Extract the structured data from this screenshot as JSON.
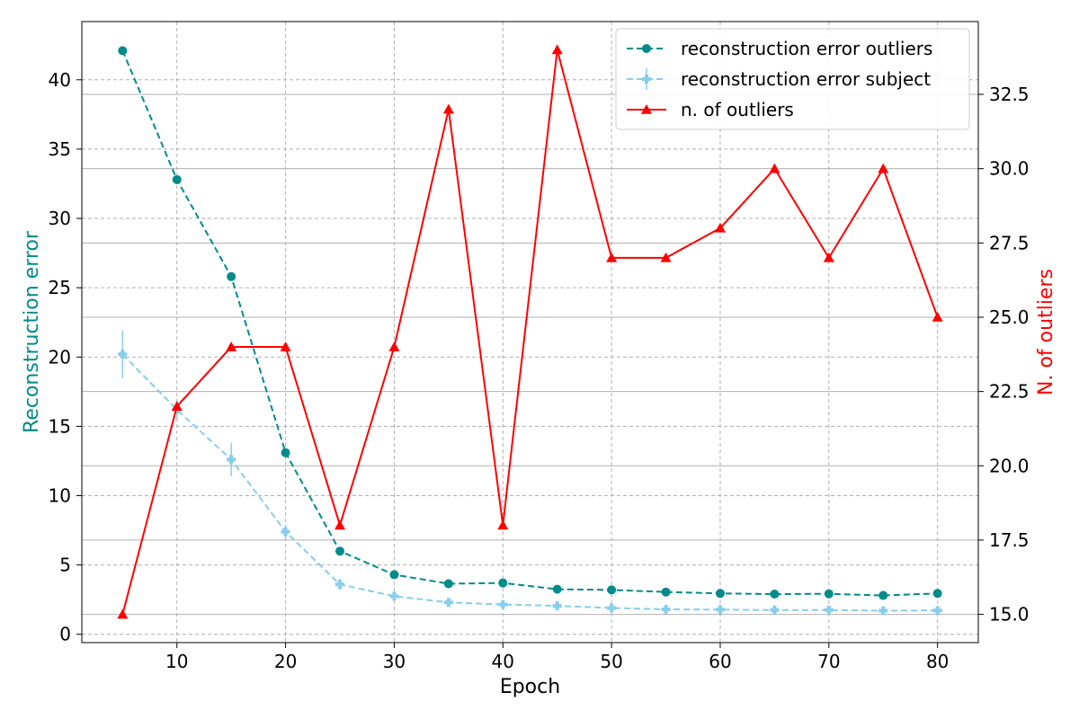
{
  "chart_data": {
    "type": "line",
    "x": [
      5,
      10,
      15,
      20,
      25,
      30,
      35,
      40,
      45,
      50,
      55,
      60,
      65,
      70,
      75,
      80
    ],
    "xlabel": "Epoch",
    "xticks": [
      10,
      20,
      30,
      40,
      50,
      60,
      70,
      80
    ],
    "xlim": [
      1.25,
      83.75
    ],
    "y_left": {
      "label": "Reconstruction error",
      "color": "#008b8b",
      "lim": [
        -0.6,
        44.2
      ],
      "ticks": [
        0,
        5,
        10,
        15,
        20,
        25,
        30,
        35,
        40
      ],
      "tick_labels": [
        "0",
        "5",
        "10",
        "15",
        "20",
        "25",
        "30",
        "35",
        "40"
      ]
    },
    "y_right": {
      "label": "N. of outliers",
      "color": "#ff0000",
      "lim": [
        14.05,
        34.95
      ],
      "ticks": [
        15.0,
        17.5,
        20.0,
        22.5,
        25.0,
        27.5,
        30.0,
        32.5
      ],
      "tick_labels": [
        "15.0",
        "17.5",
        "20.0",
        "22.5",
        "25.0",
        "27.5",
        "30.0",
        "32.5"
      ]
    },
    "series": [
      {
        "name": "reconstruction error outliers",
        "axis": "left",
        "color": "#008b8b",
        "style": "dashed",
        "marker": "circle",
        "values": [
          42.1,
          32.8,
          25.8,
          13.1,
          6.0,
          4.3,
          3.65,
          3.7,
          3.25,
          3.2,
          3.05,
          2.95,
          2.9,
          2.92,
          2.8,
          2.95
        ]
      },
      {
        "name": "reconstruction error subject",
        "axis": "left",
        "color": "#87ceeb",
        "style": "dashed",
        "marker": "plus-filled",
        "values": [
          20.2,
          16.2,
          12.6,
          7.4,
          3.6,
          2.75,
          2.3,
          2.15,
          2.05,
          1.9,
          1.8,
          1.78,
          1.75,
          1.75,
          1.7,
          1.72
        ],
        "errors": [
          1.7,
          0.7,
          1.2,
          0.5,
          0.4,
          0.3,
          0.2,
          0.15,
          0.15,
          0.15,
          0.1,
          0.1,
          0.1,
          0.1,
          0.1,
          0.1
        ]
      },
      {
        "name": "n. of outliers",
        "axis": "right",
        "color": "#ff0000",
        "style": "solid",
        "marker": "triangle",
        "values": [
          15,
          22,
          24,
          24,
          18,
          24,
          32,
          18,
          34,
          27,
          27,
          28,
          30,
          27,
          30,
          25
        ]
      }
    ],
    "grid": true,
    "legend_position": "top-right"
  }
}
